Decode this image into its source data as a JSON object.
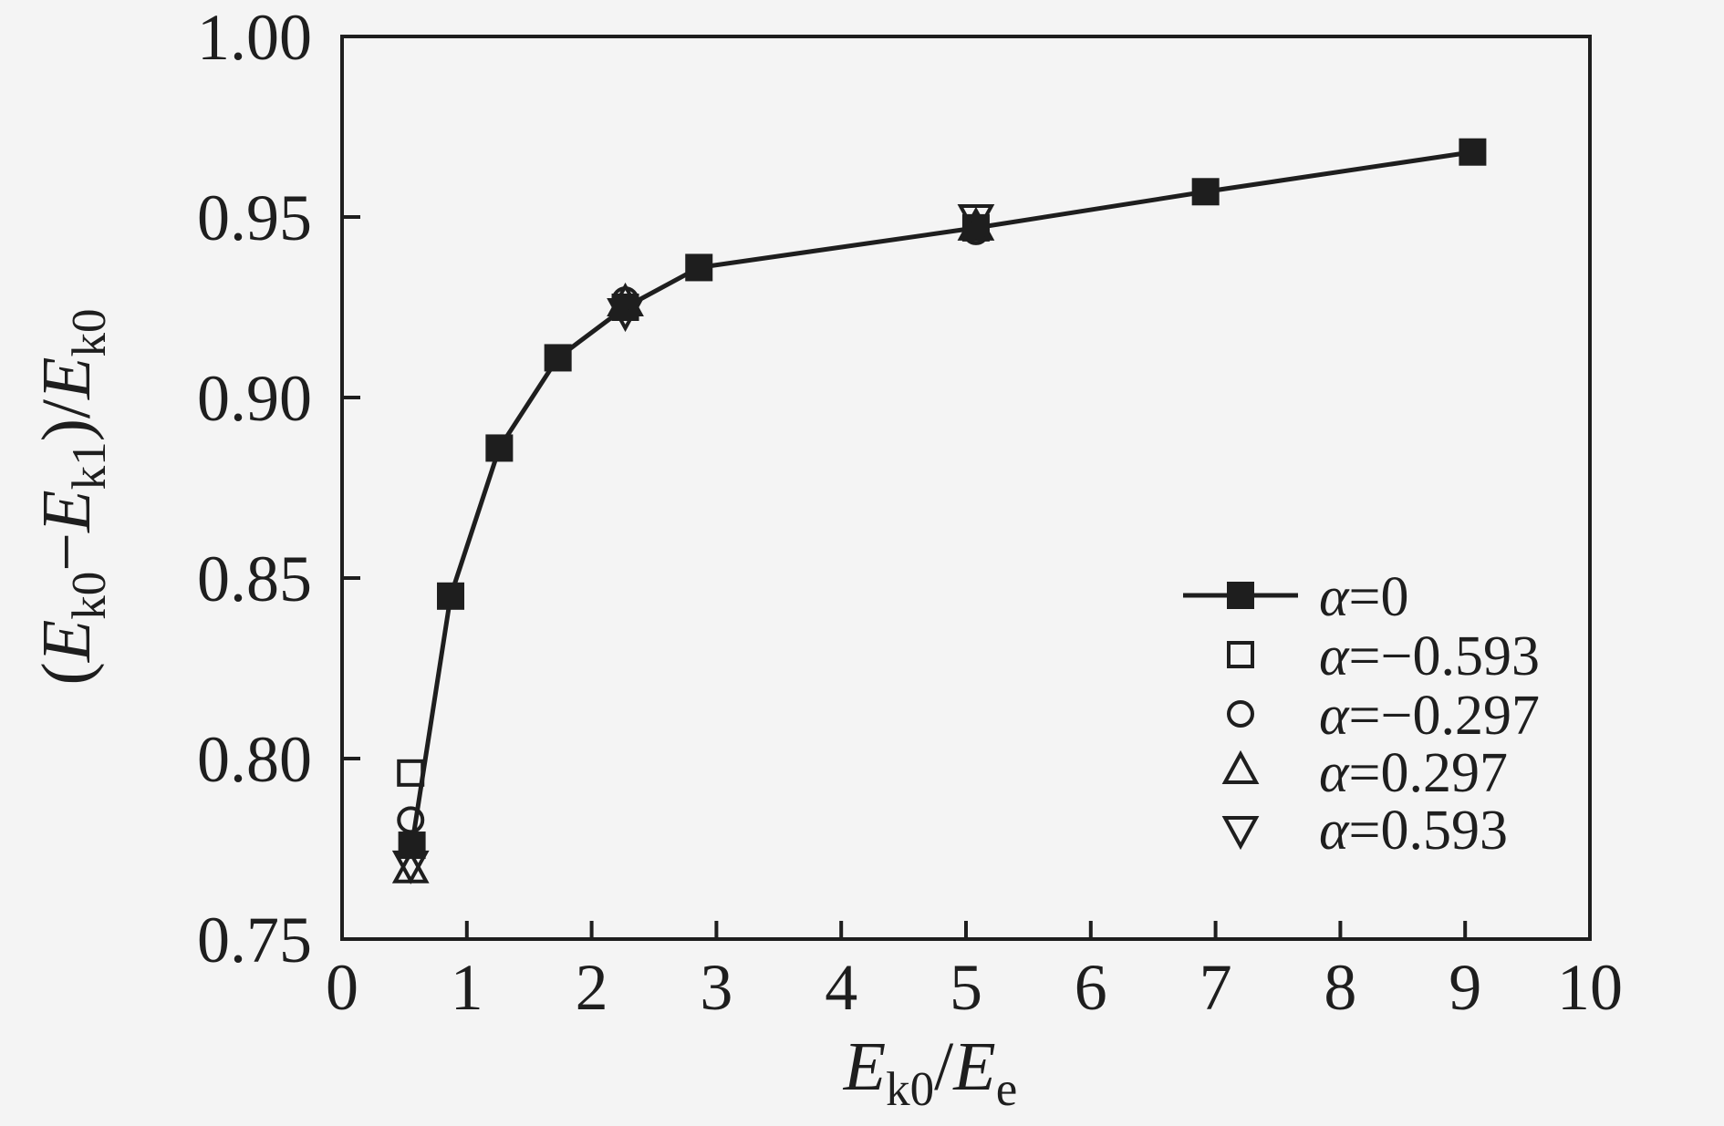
{
  "figure": {
    "background": "#f4f4f4",
    "ink": "#1e1e1e"
  },
  "chart_data": {
    "type": "scatter",
    "title": "",
    "xlabel": "E_k0/E_e",
    "ylabel": "(E_k0−E_k1)/E_k0",
    "xlabel_tokens": [
      {
        "t": "E",
        "it": true
      },
      {
        "t": "k0",
        "sub": true
      },
      {
        "t": "/"
      },
      {
        "t": "E",
        "it": true
      },
      {
        "t": "e",
        "sub": true
      }
    ],
    "ylabel_tokens": [
      {
        "t": "("
      },
      {
        "t": "E",
        "it": true
      },
      {
        "t": "k0",
        "sub": true
      },
      {
        "t": "−"
      },
      {
        "t": "E",
        "it": true
      },
      {
        "t": "k1",
        "sub": true
      },
      {
        "t": ")/"
      },
      {
        "t": "E",
        "it": true
      },
      {
        "t": "k0",
        "sub": true
      }
    ],
    "xlim": [
      0,
      10
    ],
    "ylim": [
      0.75,
      1.0
    ],
    "x_ticks": [
      0,
      1,
      2,
      3,
      4,
      5,
      6,
      7,
      8,
      9,
      10
    ],
    "x_tick_labels": [
      "0",
      "1",
      "2",
      "3",
      "4",
      "5",
      "6",
      "7",
      "8",
      "9",
      "10"
    ],
    "y_ticks": [
      0.75,
      0.8,
      0.85,
      0.9,
      0.95,
      1.0
    ],
    "y_tick_labels": [
      "0.75",
      "0.80",
      "0.85",
      "0.90",
      "0.95",
      "1.00"
    ],
    "grid": false,
    "legend_position": "inside lower right",
    "series": [
      {
        "name": "α=0",
        "marker": "square-filled",
        "line": true,
        "points": [
          [
            0.56,
            0.776
          ],
          [
            0.87,
            0.845
          ],
          [
            1.26,
            0.886
          ],
          [
            1.73,
            0.911
          ],
          [
            2.27,
            0.925
          ],
          [
            2.86,
            0.936
          ],
          [
            5.08,
            0.947
          ],
          [
            6.92,
            0.957
          ],
          [
            9.06,
            0.968
          ]
        ]
      },
      {
        "name": "α=−0.593",
        "marker": "square-open",
        "line": false,
        "points": [
          [
            0.55,
            0.796
          ]
        ]
      },
      {
        "name": "α=−0.297",
        "marker": "circle-open",
        "line": false,
        "points": [
          [
            0.55,
            0.783
          ],
          [
            2.27,
            0.927
          ],
          [
            5.08,
            0.946
          ]
        ]
      },
      {
        "name": "α=0.297",
        "marker": "triangle-up-open",
        "line": false,
        "points": [
          [
            0.55,
            0.769
          ],
          [
            2.27,
            0.926
          ],
          [
            5.08,
            0.947
          ]
        ]
      },
      {
        "name": "α=0.593",
        "marker": "triangle-down-open",
        "line": false,
        "points": [
          [
            0.55,
            0.771
          ],
          [
            2.27,
            0.924
          ],
          [
            5.08,
            0.95
          ]
        ]
      }
    ]
  }
}
